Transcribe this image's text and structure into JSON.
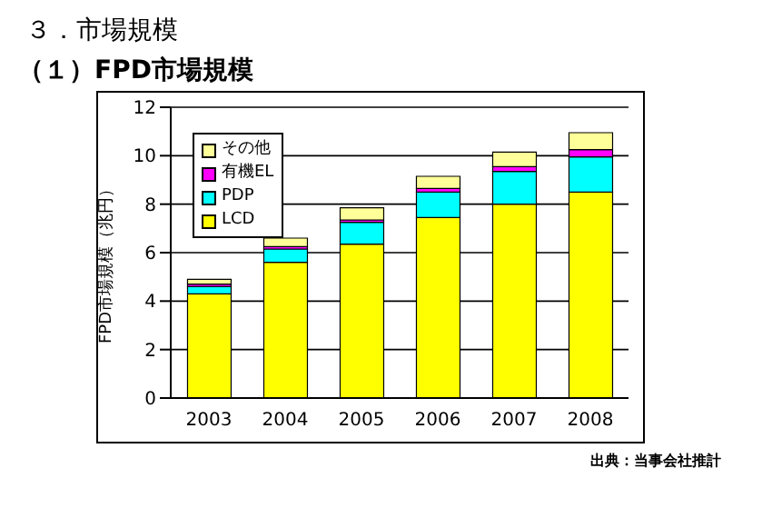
{
  "chart_data": {
    "type": "bar",
    "title": "３．市場規模",
    "subtitle": "（１）FPD市場規模",
    "ylabel": "FPD市場規模（兆円）",
    "annotations": [
      "出典：当事会社推計"
    ],
    "categories": [
      "2003",
      "2004",
      "2005",
      "2006",
      "2007",
      "2008"
    ],
    "stacked": true,
    "series": [
      {
        "name": "LCD",
        "color": "#ffff00",
        "values": [
          4.3,
          5.6,
          6.35,
          7.45,
          8.0,
          8.5
        ]
      },
      {
        "name": "PDP",
        "color": "#00ffff",
        "values": [
          0.3,
          0.55,
          0.9,
          1.05,
          1.35,
          1.45
        ]
      },
      {
        "name": "有機EL",
        "color": "#ff00ff",
        "values": [
          0.1,
          0.1,
          0.1,
          0.15,
          0.2,
          0.3
        ]
      },
      {
        "name": "その他",
        "color": "#ffff99",
        "values": [
          0.2,
          0.35,
          0.5,
          0.5,
          0.6,
          0.7
        ]
      }
    ],
    "ylim": [
      0,
      12
    ],
    "yticks": [
      0,
      2,
      4,
      6,
      8,
      10,
      12
    ],
    "grid": "y",
    "legend": "top left"
  }
}
